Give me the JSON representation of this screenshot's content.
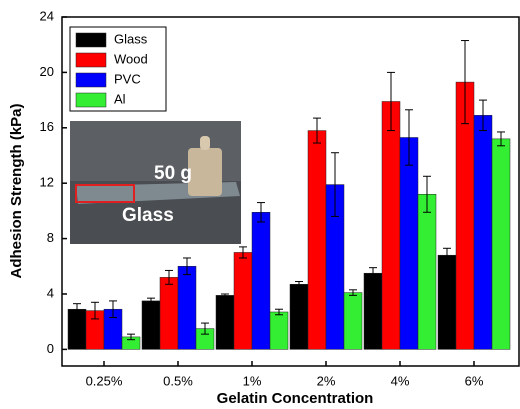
{
  "chart_data": {
    "type": "bar",
    "x_label": "Gelatin Concentration",
    "y_label": "Adhesion Strength (kPa)",
    "categories": [
      "0.25%",
      "0.5%",
      "1%",
      "2%",
      "4%",
      "6%"
    ],
    "series": [
      {
        "name": "Glass",
        "color": "#000000",
        "values": [
          2.9,
          3.5,
          3.9,
          4.7,
          5.5,
          6.8
        ],
        "errors": [
          0.4,
          0.2,
          0.1,
          0.2,
          0.4,
          0.5
        ]
      },
      {
        "name": "Wood",
        "color": "#ff0000",
        "values": [
          2.8,
          5.2,
          7.0,
          15.8,
          17.9,
          19.3
        ],
        "errors": [
          0.6,
          0.5,
          0.4,
          0.9,
          2.1,
          3.0
        ]
      },
      {
        "name": "PVC",
        "color": "#0000ff",
        "values": [
          2.9,
          6.0,
          9.9,
          11.9,
          15.3,
          16.9
        ],
        "errors": [
          0.6,
          0.6,
          0.7,
          2.3,
          2.0,
          1.1
        ]
      },
      {
        "name": "Al",
        "color": "#33ee33",
        "values": [
          0.9,
          1.5,
          2.7,
          4.1,
          11.2,
          15.2
        ],
        "errors": [
          0.2,
          0.4,
          0.2,
          0.2,
          1.3,
          0.5
        ]
      }
    ],
    "ylim": [
      -1.2,
      24
    ],
    "yticks": [
      0,
      4,
      8,
      12,
      16,
      20,
      24
    ],
    "legend": "upper left",
    "inset_labels": [
      "50 g",
      "Glass"
    ]
  }
}
